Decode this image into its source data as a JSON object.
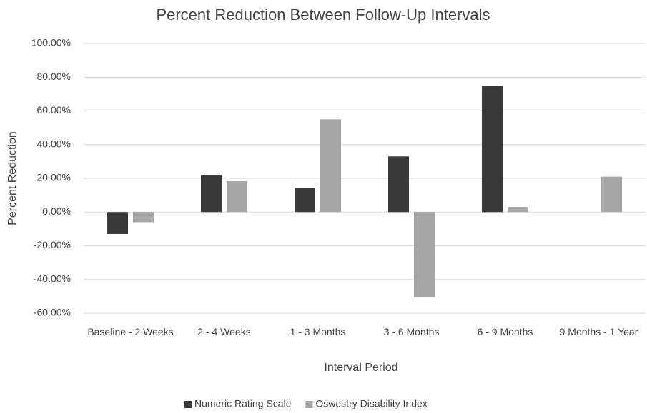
{
  "chart_data": {
    "type": "bar",
    "title": "Percent Reduction Between Follow-Up Intervals",
    "x_label": "Interval Period",
    "y_label": "Percent Reduction",
    "categories": [
      "Baseline - 2 Weeks",
      "2 - 4 Weeks",
      "1 - 3 Months",
      "3 - 6 Months",
      "6 - 9 Months",
      "9 Months - 1 Year"
    ],
    "series": [
      {
        "name": "Numeric Rating Scale",
        "color": "#3a3a3a",
        "values": [
          -13,
          22,
          14.5,
          33,
          75,
          0
        ]
      },
      {
        "name": "Oswestry Disability Index",
        "color": "#a6a6a6",
        "values": [
          -6,
          18.3,
          55,
          -50.5,
          3,
          21
        ]
      }
    ],
    "ylim": [
      -60,
      100
    ],
    "yticks": [
      {
        "value": -60,
        "label": "-60.00%"
      },
      {
        "value": -40,
        "label": "-40.00%"
      },
      {
        "value": -20,
        "label": "-20.00%"
      },
      {
        "value": 0,
        "label": "0.00%"
      },
      {
        "value": 20,
        "label": "20.00%"
      },
      {
        "value": 40,
        "label": "40.00%"
      },
      {
        "value": 60,
        "label": "60.00%"
      },
      {
        "value": 80,
        "label": "80.00%"
      },
      {
        "value": 100,
        "label": "100.00%"
      }
    ],
    "grid": true,
    "legend": "bottom"
  }
}
